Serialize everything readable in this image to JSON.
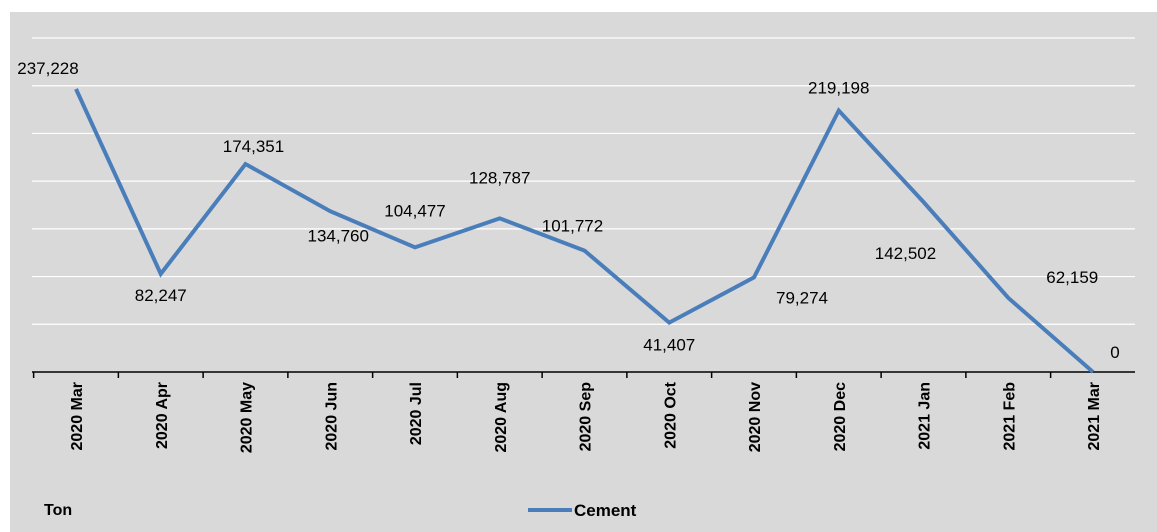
{
  "chart_data": {
    "type": "line",
    "categories": [
      "2020 Mar",
      "2020 Apr",
      "2020 May",
      "2020 Jun",
      "2020 Jul",
      "2020 Aug",
      "2020 Sep",
      "2020 Oct",
      "2020 Nov",
      "2020 Dec",
      "2021 Jan",
      "2021 Feb",
      "2021 Mar"
    ],
    "series": [
      {
        "name": "Cement",
        "values": [
          237228,
          82247,
          174351,
          134760,
          104477,
          128787,
          101772,
          41407,
          79274,
          219198,
          142502,
          62159,
          0
        ],
        "labels": [
          "237,228",
          "82,247",
          "174,351",
          "134,760",
          "104,477",
          "128,787",
          "101,772",
          "41,407",
          "79,274",
          "219,198",
          "142,502",
          "62,159",
          "0"
        ]
      }
    ],
    "unit_label": "Ton",
    "ylim": [
      0,
      280000
    ],
    "grid": true,
    "legend": "bottom-center",
    "colors": {
      "line": "#4a7ebb",
      "background": "#d9d9d9",
      "grid": "#ffffff",
      "axis": "#000000"
    }
  }
}
